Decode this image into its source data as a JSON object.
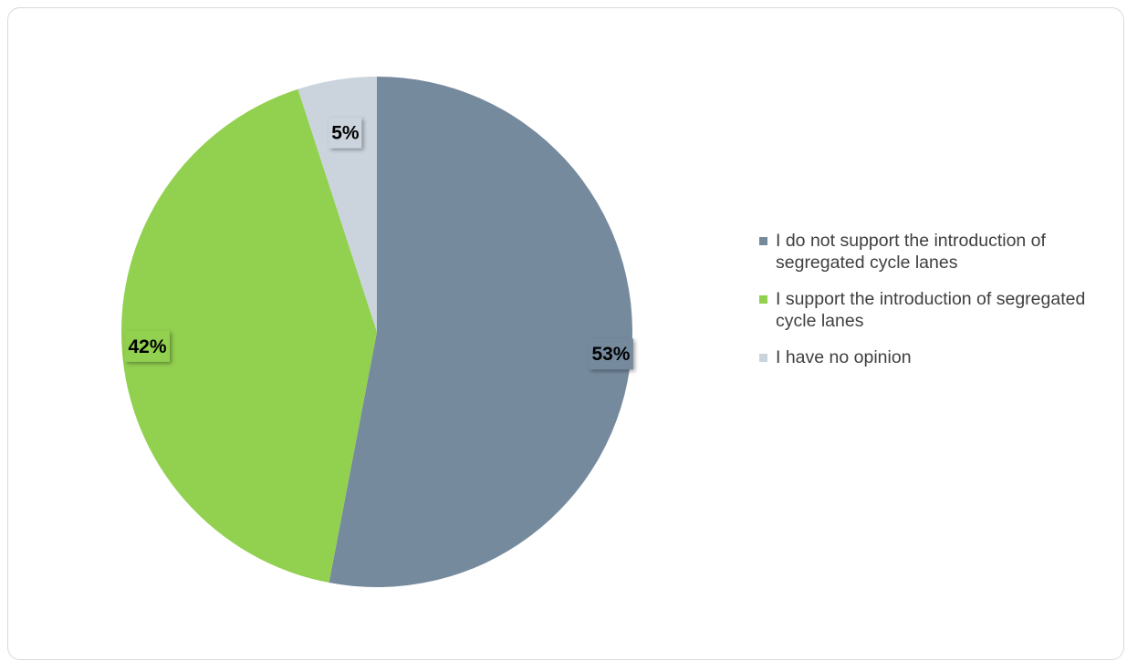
{
  "chart_data": {
    "type": "pie",
    "title": "",
    "categories": [
      "I do not support the introduction of segregated cycle lanes",
      "I support the introduction of segregated cycle lanes",
      "I have no opinion"
    ],
    "values": [
      53,
      42,
      5
    ],
    "data_labels": [
      "53%",
      "42%",
      "5%"
    ],
    "colors": [
      "#768a9e",
      "#92d050",
      "#cbd4dd"
    ],
    "start_angle_deg": 0,
    "direction": "clockwise",
    "legend_position": "right"
  },
  "legend": {
    "items": [
      {
        "label": "I do not support the introduction of segregated cycle lanes",
        "color": "#768a9e"
      },
      {
        "label": "I support the introduction of segregated cycle lanes",
        "color": "#92d050"
      },
      {
        "label": "I have no opinion",
        "color": "#cbd4dd"
      }
    ]
  }
}
